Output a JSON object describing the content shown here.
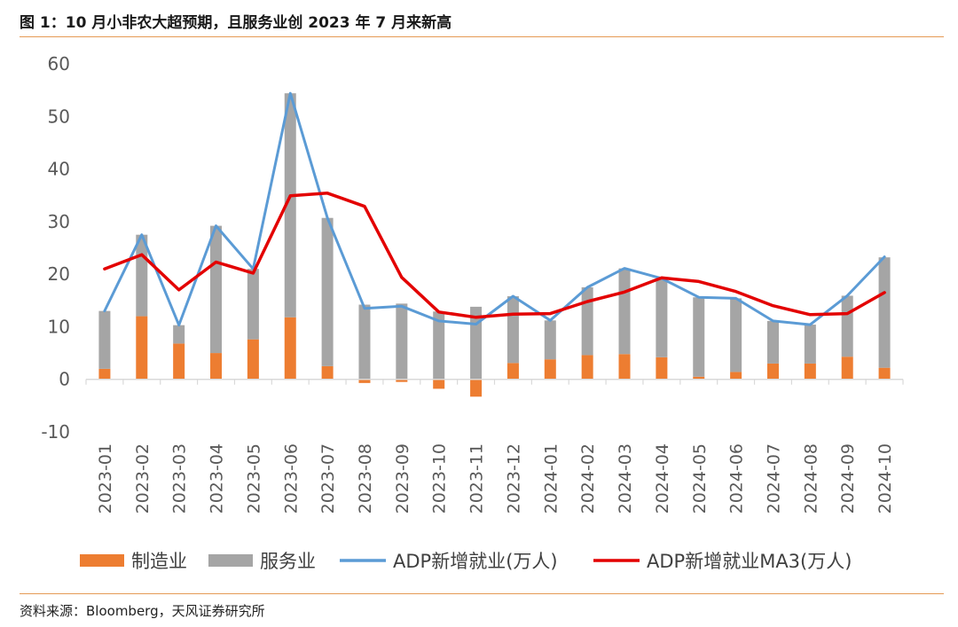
{
  "title": "图 1：10 月小非农大超预期，且服务业创 2023 年 7 月来新高",
  "source": "资料来源：Bloomberg，天风证券研究所",
  "chart_data": {
    "type": "bar",
    "categories": [
      "2023-01",
      "2023-02",
      "2023-03",
      "2023-04",
      "2023-05",
      "2023-06",
      "2023-07",
      "2023-08",
      "2023-09",
      "2023-10",
      "2023-11",
      "2023-12",
      "2024-01",
      "2024-02",
      "2024-03",
      "2024-04",
      "2024-05",
      "2024-06",
      "2024-07",
      "2024-08",
      "2024-09",
      "2024-10"
    ],
    "ylim": [
      -10,
      60
    ],
    "yticks": [
      "60",
      "50",
      "40",
      "30",
      "20",
      "10",
      "0",
      "-10"
    ],
    "grid": false,
    "legend_position": "bottom",
    "series": [
      {
        "name": "制造业",
        "kind": "bar",
        "color": "#ed7d31",
        "values": [
          2.0,
          12.0,
          6.8,
          5.0,
          7.6,
          11.8,
          2.5,
          -0.7,
          -0.5,
          -1.8,
          -3.3,
          3.1,
          3.8,
          4.6,
          4.8,
          4.2,
          0.5,
          1.4,
          3.0,
          3.0,
          4.3,
          2.2
        ]
      },
      {
        "name": "服务业",
        "kind": "bar",
        "color": "#a5a5a5",
        "values": [
          11.0,
          15.5,
          3.5,
          24.2,
          13.4,
          42.6,
          28.2,
          14.2,
          14.4,
          12.9,
          13.8,
          12.7,
          7.4,
          12.9,
          16.3,
          15.0,
          15.1,
          14.0,
          8.1,
          7.4,
          11.6,
          21.0
        ]
      },
      {
        "name": "ADP新增就业(万人)",
        "kind": "line",
        "color": "#5b9bd5",
        "values": [
          13.0,
          27.5,
          10.3,
          29.2,
          21.0,
          54.4,
          30.7,
          13.5,
          13.9,
          11.1,
          10.5,
          15.8,
          11.2,
          17.5,
          21.1,
          19.2,
          15.6,
          15.4,
          11.1,
          10.4,
          15.9,
          23.3
        ]
      },
      {
        "name": "ADP新增就业MA3(万人)",
        "kind": "line",
        "color": "#e30000",
        "values": [
          21.0,
          23.7,
          17.0,
          22.3,
          20.2,
          34.9,
          35.4,
          32.9,
          19.4,
          12.8,
          11.8,
          12.4,
          12.5,
          14.8,
          16.6,
          19.3,
          18.6,
          16.7,
          14.0,
          12.3,
          12.5,
          16.5
        ]
      }
    ]
  }
}
